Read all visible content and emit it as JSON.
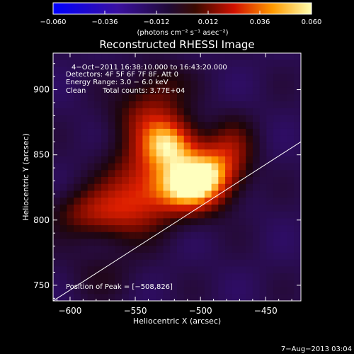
{
  "chart_data": {
    "type": "heatmap",
    "title": "Reconstructed RHESSI Image",
    "xlabel": "Heliocentric X (arcsec)",
    "ylabel": "Heliocentric Y (arcsec)",
    "xlim": [
      -613,
      -423
    ],
    "ylim": [
      738,
      928
    ],
    "xticks": [
      -600,
      -550,
      -500,
      -450
    ],
    "yticks": [
      750,
      800,
      850,
      900
    ],
    "colorbar": {
      "range": [
        -0.06,
        0.06
      ],
      "ticks": [
        -0.06,
        -0.036,
        -0.012,
        0.012,
        0.036,
        0.06
      ],
      "tick_labels": [
        "−0.060",
        "−0.036",
        "−0.012",
        "0.012",
        "0.036",
        "0.060"
      ],
      "units_label": "(photons cm⁻² s⁻¹ asec⁻²)",
      "colormap": "blue-purple-red-yellow-white"
    },
    "peak": {
      "x": -508,
      "y": 826
    },
    "sources": [
      {
        "x": -508,
        "y": 826,
        "sx": 18,
        "sy": 14,
        "amp": 0.068
      },
      {
        "x": -524,
        "y": 858,
        "sx": 15,
        "sy": 13,
        "amp": 0.055
      },
      {
        "x": -490,
        "y": 840,
        "sx": 16,
        "sy": 14,
        "amp": 0.04
      },
      {
        "x": -545,
        "y": 828,
        "sx": 20,
        "sy": 22,
        "amp": 0.034
      },
      {
        "x": -540,
        "y": 880,
        "sx": 18,
        "sy": 14,
        "amp": 0.026
      },
      {
        "x": -565,
        "y": 806,
        "sx": 22,
        "sy": 14,
        "amp": 0.023
      },
      {
        "x": -590,
        "y": 805,
        "sx": 18,
        "sy": 12,
        "amp": 0.016
      },
      {
        "x": -530,
        "y": 905,
        "sx": 16,
        "sy": 12,
        "amp": 0.014
      },
      {
        "x": -575,
        "y": 760,
        "sx": 20,
        "sy": 14,
        "amp": 0.008
      },
      {
        "x": -475,
        "y": 860,
        "sx": 12,
        "sy": 14,
        "amp": 0.018
      }
    ],
    "limb_line": {
      "x": [
        -613,
        -423
      ],
      "y": [
        738,
        860
      ]
    },
    "annotations": {
      "time": "4−Oct−2011 16:38:10.000 to 16:43:20.000",
      "detectors": "Detectors: 4F 5F 6F 7F 8F, Att 0",
      "energy": "Energy Range: 3.0 − 6.0 keV",
      "algo": "Clean",
      "counts": "Total counts: 3.77E+04",
      "peak_text": "Position of Peak = [−508,826]"
    },
    "date_stamp": "7−Aug−2013 03:04"
  }
}
